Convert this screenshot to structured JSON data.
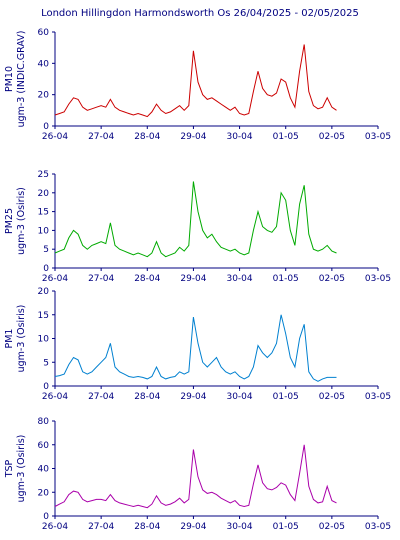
{
  "title": "London Hillingdon Harmondsworth Os  26/04/2025 - 02/05/2025",
  "chart_data": [
    {
      "type": "line",
      "label_1": "PM10",
      "label_2": "ugm-3 (INDIC.GRAV)",
      "color": "#cc0000",
      "ylim": [
        0,
        60
      ],
      "yticks": [
        "0",
        "20",
        "40",
        "60"
      ],
      "xticks": [
        "26-04",
        "27-04",
        "28-04",
        "29-04",
        "30-04",
        "01-05",
        "02-05",
        "03-05"
      ],
      "x": [
        0.0,
        0.1,
        0.2,
        0.3,
        0.4,
        0.5,
        0.6,
        0.7,
        0.8,
        0.9,
        1.0,
        1.1,
        1.2,
        1.3,
        1.4,
        1.5,
        1.6,
        1.7,
        1.8,
        1.9,
        2.0,
        2.1,
        2.2,
        2.3,
        2.4,
        2.5,
        2.6,
        2.7,
        2.8,
        2.9,
        3.0,
        3.1,
        3.2,
        3.3,
        3.4,
        3.5,
        3.6,
        3.7,
        3.8,
        3.9,
        4.0,
        4.1,
        4.2,
        4.3,
        4.4,
        4.5,
        4.6,
        4.7,
        4.8,
        4.9,
        5.0,
        5.1,
        5.2,
        5.3,
        5.4,
        5.5,
        5.6,
        5.7,
        5.8,
        5.9,
        6.0,
        6.1
      ],
      "y": [
        7,
        8,
        9,
        14,
        18,
        17,
        12,
        10,
        11,
        12,
        13,
        12,
        17,
        12,
        10,
        9,
        8,
        7,
        8,
        7,
        6,
        9,
        14,
        10,
        8,
        9,
        11,
        13,
        10,
        13,
        48,
        28,
        20,
        17,
        18,
        16,
        14,
        12,
        10,
        12,
        8,
        7,
        8,
        22,
        35,
        24,
        20,
        19,
        21,
        30,
        28,
        18,
        12,
        35,
        52,
        22,
        13,
        11,
        12,
        18,
        12,
        10
      ]
    },
    {
      "type": "line",
      "label_1": "PM25",
      "label_2": "ugm-3 (Osiris)",
      "color": "#00aa00",
      "ylim": [
        0,
        25
      ],
      "yticks": [
        "0",
        "5",
        "10",
        "15",
        "20",
        "25"
      ],
      "xticks": [
        "26-04",
        "27-04",
        "28-04",
        "29-04",
        "30-04",
        "01-05",
        "02-05",
        "03-05"
      ],
      "x": [
        0.0,
        0.1,
        0.2,
        0.3,
        0.4,
        0.5,
        0.6,
        0.7,
        0.8,
        0.9,
        1.0,
        1.1,
        1.2,
        1.3,
        1.4,
        1.5,
        1.6,
        1.7,
        1.8,
        1.9,
        2.0,
        2.1,
        2.2,
        2.3,
        2.4,
        2.5,
        2.6,
        2.7,
        2.8,
        2.9,
        3.0,
        3.1,
        3.2,
        3.3,
        3.4,
        3.5,
        3.6,
        3.7,
        3.8,
        3.9,
        4.0,
        4.1,
        4.2,
        4.3,
        4.4,
        4.5,
        4.6,
        4.7,
        4.8,
        4.9,
        5.0,
        5.1,
        5.2,
        5.3,
        5.4,
        5.5,
        5.6,
        5.7,
        5.8,
        5.9,
        6.0,
        6.1
      ],
      "y": [
        4,
        4.5,
        5,
        8,
        10,
        9,
        6,
        5,
        6,
        6.5,
        7,
        6.5,
        12,
        6,
        5,
        4.5,
        4,
        3.5,
        4,
        3.5,
        3,
        4,
        7,
        4,
        3,
        3.5,
        4,
        5.5,
        4.5,
        6,
        23,
        15,
        10,
        8,
        9,
        7,
        5.5,
        5,
        4.5,
        5,
        4,
        3.5,
        4,
        10,
        15,
        11,
        10,
        9.5,
        11,
        20,
        18,
        10,
        6,
        17,
        22,
        9,
        5,
        4.5,
        5,
        6,
        4.5,
        4
      ]
    },
    {
      "type": "line",
      "label_1": "PM1",
      "label_2": "ugm-3 (Osiris)",
      "color": "#0080d0",
      "ylim": [
        0,
        20
      ],
      "yticks": [
        "0",
        "5",
        "10",
        "15",
        "20"
      ],
      "xticks": [
        "26-04",
        "27-04",
        "28-04",
        "29-04",
        "30-04",
        "01-05",
        "02-05",
        "03-05"
      ],
      "x": [
        0.0,
        0.1,
        0.2,
        0.3,
        0.4,
        0.5,
        0.6,
        0.7,
        0.8,
        0.9,
        1.0,
        1.1,
        1.2,
        1.3,
        1.4,
        1.5,
        1.6,
        1.7,
        1.8,
        1.9,
        2.0,
        2.1,
        2.2,
        2.3,
        2.4,
        2.5,
        2.6,
        2.7,
        2.8,
        2.9,
        3.0,
        3.1,
        3.2,
        3.3,
        3.4,
        3.5,
        3.6,
        3.7,
        3.8,
        3.9,
        4.0,
        4.1,
        4.2,
        4.3,
        4.4,
        4.5,
        4.6,
        4.7,
        4.8,
        4.9,
        5.0,
        5.1,
        5.2,
        5.3,
        5.4,
        5.5,
        5.6,
        5.7,
        5.8,
        5.9,
        6.0,
        6.1
      ],
      "y": [
        2,
        2.2,
        2.5,
        4.5,
        6,
        5.5,
        3,
        2.5,
        3,
        4,
        5,
        6,
        9,
        4,
        3,
        2.5,
        2,
        1.8,
        2,
        1.8,
        1.5,
        2,
        4,
        2,
        1.5,
        1.8,
        2,
        3,
        2.5,
        3,
        14.5,
        9,
        5,
        4,
        5,
        6,
        4,
        3,
        2.5,
        3,
        2,
        1.5,
        2,
        4,
        8.5,
        7,
        6,
        7,
        9,
        15,
        11,
        6,
        4,
        10,
        13,
        3,
        1.5,
        1,
        1.5,
        1.8,
        1.8,
        1.8
      ]
    },
    {
      "type": "line",
      "label_1": "TSP",
      "label_2": "ugm-3 (Osiris)",
      "color": "#aa00aa",
      "ylim": [
        0,
        80
      ],
      "yticks": [
        "0",
        "20",
        "40",
        "60",
        "80"
      ],
      "xticks": [
        "26-04",
        "27-04",
        "28-04",
        "29-04",
        "30-04",
        "01-05",
        "02-05",
        "03-05"
      ],
      "x": [
        0.0,
        0.1,
        0.2,
        0.3,
        0.4,
        0.5,
        0.6,
        0.7,
        0.8,
        0.9,
        1.0,
        1.1,
        1.2,
        1.3,
        1.4,
        1.5,
        1.6,
        1.7,
        1.8,
        1.9,
        2.0,
        2.1,
        2.2,
        2.3,
        2.4,
        2.5,
        2.6,
        2.7,
        2.8,
        2.9,
        3.0,
        3.1,
        3.2,
        3.3,
        3.4,
        3.5,
        3.6,
        3.7,
        3.8,
        3.9,
        4.0,
        4.1,
        4.2,
        4.3,
        4.4,
        4.5,
        4.6,
        4.7,
        4.8,
        4.9,
        5.0,
        5.1,
        5.2,
        5.3,
        5.4,
        5.5,
        5.6,
        5.7,
        5.8,
        5.9,
        6.0,
        6.1
      ],
      "y": [
        8,
        10,
        12,
        18,
        21,
        20,
        14,
        12,
        13,
        14,
        14,
        13,
        18,
        13,
        11,
        10,
        9,
        8,
        9,
        8,
        7,
        10,
        17,
        11,
        9,
        10,
        12,
        15,
        11,
        14,
        56,
        33,
        22,
        19,
        20,
        18,
        15,
        13,
        11,
        13,
        9,
        8,
        9,
        27,
        43,
        28,
        23,
        22,
        24,
        28,
        26,
        18,
        13,
        36,
        60,
        25,
        14,
        11,
        12,
        25,
        13,
        11
      ]
    }
  ]
}
